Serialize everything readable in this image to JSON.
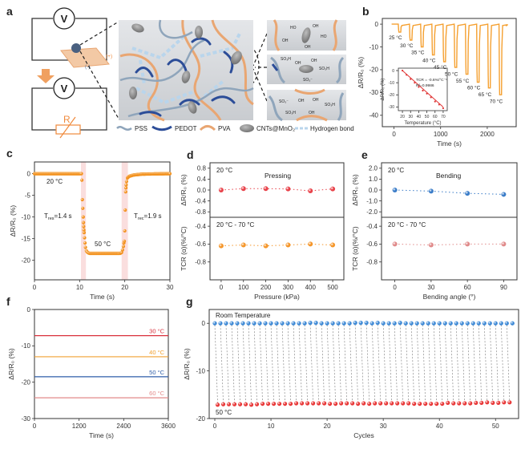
{
  "figure": {
    "panel_labels": [
      "a",
      "b",
      "c",
      "d",
      "e",
      "f",
      "g"
    ]
  },
  "schematic": {
    "voltmeter_label": "V",
    "resistor_label": "R",
    "positive_label": "(+)",
    "negative_label": "(-)",
    "legend": [
      "PSS",
      "PEDOT",
      "PVA",
      "CNTs@MnO₂",
      "Hydrogen bond"
    ],
    "chem_labels_top": [
      "HO",
      "OH",
      "OH",
      "OH",
      "HO"
    ],
    "chem_labels_mid": [
      "SO₃H",
      "OH",
      "OH",
      "SO₃H",
      "SO₃⁻"
    ],
    "chem_labels_bottom": [
      "SO₃⁻",
      "OH",
      "OH",
      "SO₃H",
      "SO₃H",
      "OH"
    ],
    "colors": {
      "pss": "#9fb4c9",
      "pedot": "#2c4d98",
      "pva": "#e9a672",
      "cnt": "#8c8c8c",
      "hbond": "#b9d5ec",
      "accent": "#f08a3c"
    }
  },
  "chart_data": [
    {
      "panel": "b",
      "type": "line",
      "xlabel": "Time (s)",
      "ylabel": "ΔR/R₀ (%)",
      "xlim": [
        -250,
        2620
      ],
      "ylim": [
        -45,
        2.5
      ],
      "xticks": [
        "0",
        "1000",
        "2000"
      ],
      "yticks": [
        "0",
        "-10",
        "-20",
        "-30",
        "-40"
      ],
      "color": "#f5a030",
      "dips": [
        {
          "time": 100,
          "value": -3.5,
          "label": "25 °C"
        },
        {
          "time": 340,
          "value": -7,
          "label": "30 °C"
        },
        {
          "time": 580,
          "value": -10,
          "label": "35 °C"
        },
        {
          "time": 820,
          "value": -13.5,
          "label": "40 °C"
        },
        {
          "time": 1060,
          "value": -16.5,
          "label": "45 °C"
        },
        {
          "time": 1300,
          "value": -19,
          "label": "50 °C"
        },
        {
          "time": 1540,
          "value": -22,
          "label": "55 °C"
        },
        {
          "time": 1780,
          "value": -25.5,
          "label": "60 °C"
        },
        {
          "time": 2020,
          "value": -28,
          "label": "65 °C"
        },
        {
          "time": 2260,
          "value": -31,
          "label": "70 °C"
        }
      ],
      "end_time": 2400
    },
    {
      "panel": "b-inset",
      "type": "scatter",
      "xlabel": "Temperature (°C)",
      "ylabel": "ΔR/R₀ (%)",
      "xlim": [
        15,
        75
      ],
      "ylim": [
        -33,
        2
      ],
      "xticks": [
        "20",
        "30",
        "40",
        "50",
        "60",
        "70"
      ],
      "yticks": [
        "0",
        "-10",
        "-20",
        "-30"
      ],
      "x": [
        20,
        25,
        30,
        35,
        40,
        45,
        50,
        55,
        60,
        65,
        70
      ],
      "y": [
        0,
        -3.5,
        -7,
        -10,
        -13.5,
        -16.5,
        -19,
        -22,
        -25.5,
        -28,
        -31
      ],
      "fit": {
        "x": [
          20,
          70
        ],
        "y": [
          0,
          -30
        ]
      },
      "annotations": [
        "TCR = -0.6%/°C⁻¹",
        "R²=0.9986"
      ],
      "color": "#e03636"
    },
    {
      "panel": "c",
      "type": "scatter",
      "xlabel": "Time (s)",
      "ylabel": "ΔR/R₀ (%)",
      "xlim": [
        0,
        30
      ],
      "ylim": [
        -24.5,
        2.7
      ],
      "xticks": [
        "0",
        "10",
        "20",
        "30"
      ],
      "yticks": [
        "0",
        "-5",
        "-10",
        "-15",
        "-20"
      ],
      "t": [
        0,
        10.4,
        10.5,
        10.6,
        10.7,
        10.8,
        10.85,
        10.9,
        10.95,
        11.0,
        11.1,
        11.2,
        11.3,
        11.5,
        11.8,
        12.2,
        19.0,
        19.3,
        19.5,
        19.7,
        19.8,
        19.9,
        20.0,
        20.1,
        20.2,
        20.25,
        20.3,
        20.4,
        20.6,
        21.0,
        22.0,
        24.0,
        30.0
      ],
      "v": [
        0,
        0,
        -1.5,
        -6,
        -8,
        -10,
        -11.3,
        -12.2,
        -13,
        -13.6,
        -14.8,
        -16,
        -17,
        -17.8,
        -18.2,
        -18.4,
        -18.4,
        -18.2,
        -17.6,
        -16.8,
        -16,
        -15.6,
        -13.2,
        -8.4,
        -4.2,
        -3.3,
        -2.6,
        -1.8,
        -1,
        -0.6,
        -0.3,
        -0.1,
        0
      ],
      "highlight_bands": [
        [
          10.3,
          11.4
        ],
        [
          19.3,
          20.7
        ]
      ],
      "band_color": "#f9d6d6",
      "annotations": [
        "20 °C",
        "50 °C"
      ],
      "response": {
        "prefix": "T",
        "sub": "res",
        "text": "=1.4 s"
      },
      "recovery": {
        "prefix": "T",
        "sub": "rec",
        "text": "=1.9 s"
      },
      "color": "#f39320"
    },
    {
      "panel": "d-top",
      "type": "scatter",
      "ylabel": "ΔR/R₀ (%)",
      "xlim": [
        -50,
        550
      ],
      "ylim": [
        -1,
        1
      ],
      "yticks": [
        "0.8",
        "0.4",
        "0.0",
        "-0.4",
        "-0.8"
      ],
      "x": [
        0,
        100,
        200,
        300,
        400,
        500
      ],
      "y": [
        0,
        0.05,
        0.05,
        0.04,
        -0.03,
        0.04
      ],
      "annotations": [
        "20 °C",
        "Pressing"
      ],
      "color": "#e8424a"
    },
    {
      "panel": "d-bottom",
      "type": "scatter",
      "xlabel": "Pressure (kPa)",
      "ylabel": "TCR (α)(%/°C)",
      "xlim": [
        -50,
        550
      ],
      "ylim": [
        -1.0,
        -0.3
      ],
      "xticks": [
        "0",
        "100",
        "200",
        "300",
        "400",
        "500"
      ],
      "yticks": [
        "-0.4",
        "-0.6",
        "-0.8"
      ],
      "x": [
        0,
        100,
        200,
        300,
        400,
        500
      ],
      "y": [
        -0.62,
        -0.61,
        -0.62,
        -0.61,
        -0.6,
        -0.61
      ],
      "annotations": [
        "20 °C - 70 °C"
      ],
      "color": "#f5962a"
    },
    {
      "panel": "e-top",
      "type": "scatter",
      "ylabel": "ΔR/R₀ (%)",
      "xlim": [
        -11,
        101
      ],
      "ylim": [
        -2.5,
        2.5
      ],
      "yticks": [
        "2.0",
        "1.0",
        "0.0",
        "-1.0",
        "-2.0"
      ],
      "x": [
        0,
        30,
        60,
        90
      ],
      "y": [
        0,
        -0.1,
        -0.3,
        -0.4
      ],
      "annotations": [
        "20 °C",
        "Bending"
      ],
      "color": "#3a7cc8"
    },
    {
      "panel": "e-bottom",
      "type": "scatter",
      "xlabel": "Bending angle (°)",
      "ylabel": "TCR (α)(%/°C)",
      "xlim": [
        -11,
        101
      ],
      "ylim": [
        -1.0,
        -0.3
      ],
      "xticks": [
        "0",
        "30",
        "60",
        "90"
      ],
      "yticks": [
        "-0.4",
        "-0.6",
        "-0.8"
      ],
      "x": [
        0,
        30,
        60,
        90
      ],
      "y": [
        -0.6,
        -0.61,
        -0.6,
        -0.6
      ],
      "annotations": [
        "20 °C - 70 °C"
      ],
      "color": "#e08a8a"
    },
    {
      "panel": "f",
      "type": "line",
      "xlabel": "Time (s)",
      "ylabel": "ΔR/R₀ (%)",
      "xlim": [
        0,
        3600
      ],
      "ylim": [
        -30,
        0
      ],
      "xticks": [
        "0",
        "1200",
        "2400",
        "3600"
      ],
      "yticks": [
        "0",
        "-10",
        "-20",
        "-30"
      ],
      "series": [
        {
          "name": "30 °C",
          "value": -7.2,
          "color": "#d9303c"
        },
        {
          "name": "40 °C",
          "value": -13,
          "color": "#f0a030"
        },
        {
          "name": "50 °C",
          "value": -18.5,
          "color": "#2f5ea8"
        },
        {
          "name": "60 °C",
          "value": -24.3,
          "color": "#e38a8a"
        }
      ]
    },
    {
      "panel": "g",
      "type": "scatter",
      "xlabel": "Cycles",
      "ylabel": "ΔR/R₀ (%)",
      "xlim": [
        -1,
        54.1
      ],
      "ylim": [
        -20,
        2.9
      ],
      "xticks": [
        "0",
        "10",
        "20",
        "30",
        "40",
        "50"
      ],
      "yticks": [
        "0",
        "-10",
        "-20"
      ],
      "series": [
        {
          "name": "Room Temperature",
          "color": "#3f8ad6",
          "x_start": 0,
          "values": [
            0,
            0,
            0,
            0,
            0,
            0,
            0,
            0,
            0,
            0,
            0,
            0,
            0,
            0,
            0,
            0,
            0,
            0.1,
            0.1,
            0,
            0,
            0,
            0,
            0,
            0,
            0.1,
            0.1,
            0.1,
            0,
            0.1,
            0,
            0,
            0,
            0.1,
            0,
            0,
            0,
            0,
            0,
            0,
            0,
            0,
            0,
            0,
            0,
            0,
            0,
            0,
            0,
            0,
            0,
            0,
            0,
            0
          ]
        },
        {
          "name": "50 °C",
          "color": "#e83838",
          "x_start": 0.5,
          "values": [
            -17.1,
            -17.0,
            -17.0,
            -17.0,
            -17.0,
            -17.0,
            -17.1,
            -17.0,
            -16.9,
            -16.9,
            -16.9,
            -16.9,
            -16.9,
            -16.9,
            -16.8,
            -16.8,
            -16.8,
            -16.8,
            -16.8,
            -16.8,
            -16.9,
            -16.9,
            -16.8,
            -16.8,
            -16.8,
            -16.9,
            -16.8,
            -16.9,
            -16.8,
            -16.8,
            -16.8,
            -16.8,
            -16.8,
            -16.8,
            -16.8,
            -16.9,
            -16.9,
            -16.9,
            -16.9,
            -16.9,
            -16.9,
            -16.7,
            -16.8,
            -16.8,
            -16.8,
            -16.8,
            -16.7,
            -16.7,
            -16.6,
            -16.7,
            -16.7,
            -16.6,
            -16.6
          ]
        }
      ]
    }
  ]
}
